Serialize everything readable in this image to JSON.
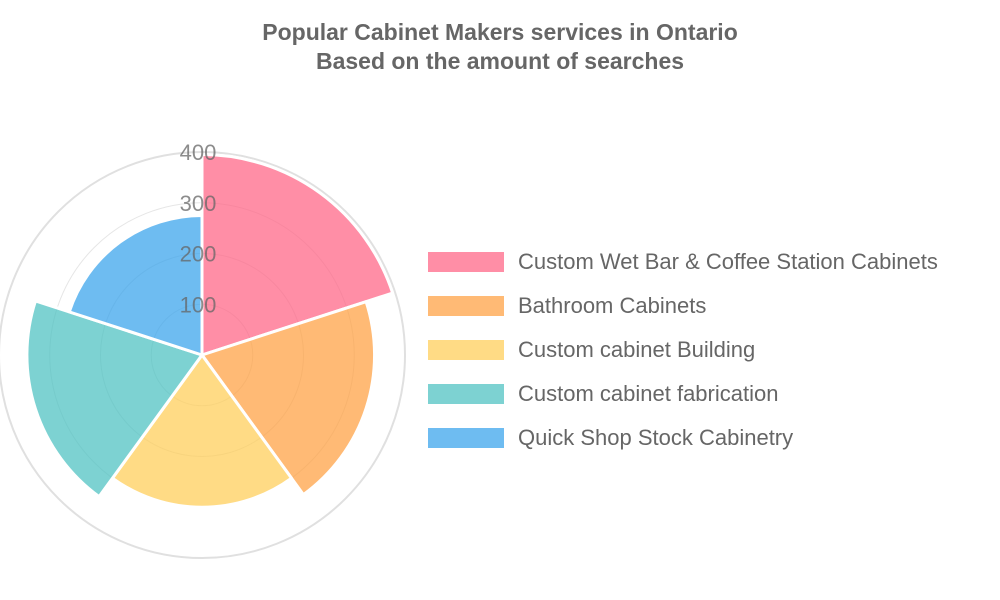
{
  "chart_data": {
    "type": "polarArea",
    "title": "Popular Cabinet Makers services in Ontario",
    "subtitle": "Based on the amount of searches",
    "categories": [
      "Custom Wet Bar & Coffee Station Cabinets",
      "Bathroom Cabinets",
      "Custom cabinet Building",
      "Custom cabinet fabrication",
      "Quick Shop Stock Cabinetry"
    ],
    "values": [
      395,
      340,
      300,
      345,
      275
    ],
    "colors": [
      "#ff6384",
      "#ff9f40",
      "#ffcd56",
      "#4bc0c0",
      "#36a2eb"
    ],
    "radial_ticks": [
      "100",
      "200",
      "300",
      "400"
    ],
    "rlim": [
      0,
      400
    ],
    "grid": true,
    "legend": "right"
  }
}
